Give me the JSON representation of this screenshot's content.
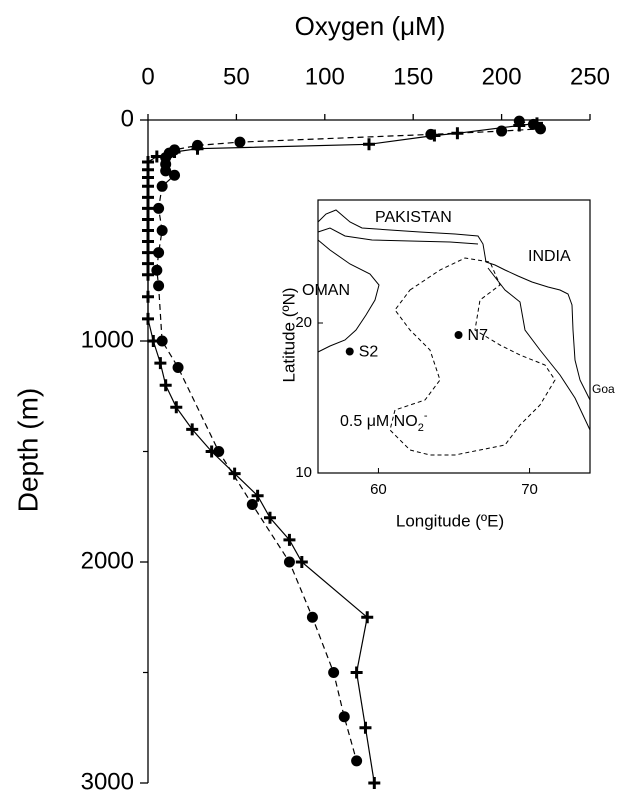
{
  "chart_data": [
    {
      "type": "line",
      "xlabel": "Oxygen (μM)",
      "ylabel": "Depth (m)",
      "xlim": [
        0,
        250
      ],
      "ylim": [
        0,
        3000
      ],
      "y_inverted": true,
      "xaxis_position": "top",
      "xticks": [
        0,
        50,
        100,
        150,
        200,
        250
      ],
      "yticks": [
        0,
        1000,
        2000,
        3000
      ],
      "yminor_ticks": [
        500,
        1500,
        2500
      ],
      "series": [
        {
          "marker": "cross",
          "line": "solid",
          "color": "#000000",
          "x": [
            220,
            210,
            175,
            162,
            125,
            28,
            15,
            5,
            0,
            0,
            0,
            0,
            0,
            0,
            0,
            0,
            0,
            0,
            0,
            0,
            0,
            0,
            3,
            7,
            10,
            16,
            25,
            36,
            49,
            62,
            69,
            80,
            87,
            124,
            118,
            123,
            128
          ],
          "values": [
            15,
            25,
            60,
            70,
            110,
            130,
            145,
            165,
            190,
            225,
            260,
            300,
            350,
            400,
            450,
            500,
            550,
            600,
            650,
            700,
            800,
            900,
            1000,
            1100,
            1200,
            1300,
            1400,
            1500,
            1600,
            1700,
            1800,
            1900,
            2000,
            2250,
            2500,
            2750,
            3000
          ]
        },
        {
          "marker": "dot",
          "line": "dashed",
          "color": "#000000",
          "x": [
            210,
            218,
            222,
            200,
            160,
            52,
            28,
            15,
            12,
            10,
            10,
            10,
            15,
            8,
            6,
            8,
            6,
            5,
            6,
            8,
            17,
            40,
            59,
            80,
            93,
            105,
            111,
            118
          ],
          "values": [
            5,
            20,
            40,
            50,
            65,
            100,
            115,
            135,
            150,
            170,
            200,
            230,
            250,
            300,
            400,
            500,
            600,
            680,
            750,
            1000,
            1120,
            1500,
            1740,
            2000,
            2250,
            2500,
            2700,
            2900
          ]
        }
      ]
    },
    {
      "type": "map",
      "xlabel": "Longitude (ºE)",
      "ylabel": "Latitude (ºN)",
      "xlim": [
        56,
        74
      ],
      "ylim": [
        10,
        28.2
      ],
      "xticks": [
        60,
        70
      ],
      "yticks": [
        10,
        20
      ],
      "regions": [
        "PAKISTAN",
        "INDIA",
        "OMAN",
        "Goa"
      ],
      "stations": [
        {
          "name": "S2",
          "lon": 58.1,
          "lat": 18.1
        },
        {
          "name": "N7",
          "lon": 65.3,
          "lat": 19.2
        }
      ],
      "contour_label": {
        "text": "0.5 μM NO",
        "sub": "2",
        "sup": "-"
      }
    }
  ]
}
